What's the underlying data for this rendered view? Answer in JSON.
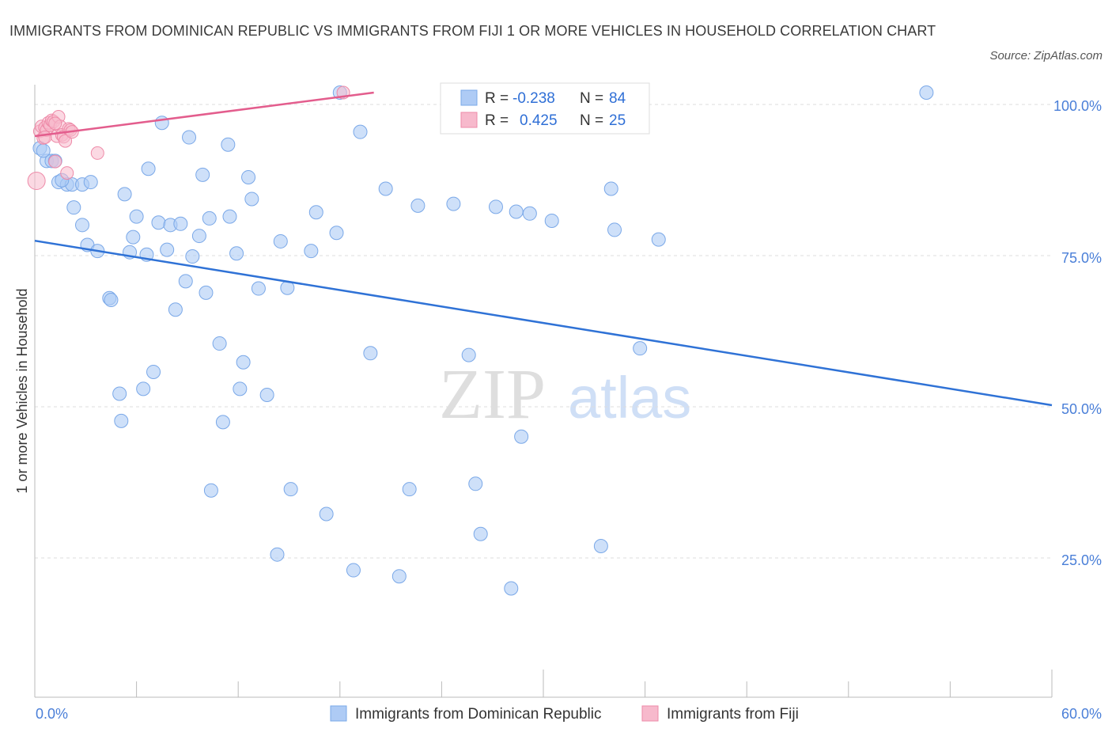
{
  "title": "IMMIGRANTS FROM DOMINICAN REPUBLIC VS IMMIGRANTS FROM FIJI 1 OR MORE VEHICLES IN HOUSEHOLD CORRELATION CHART",
  "source": "Source: ZipAtlas.com",
  "watermark": {
    "zip": "ZIP",
    "atlas": "atlas"
  },
  "legend": {
    "r_label": "R =",
    "n_label": "N =",
    "rows": [
      {
        "r": "-0.238",
        "n": "84"
      },
      {
        "r": "0.425",
        "n": "25"
      }
    ]
  },
  "colors": {
    "blue_fill": "#aecbf5",
    "blue_stroke": "#7aa8e8",
    "blue_line": "#2f72d6",
    "pink_fill": "#f7b9cc",
    "pink_stroke": "#ee8aa8",
    "pink_line": "#e35d8d",
    "tick_color": "#4a7fd8"
  },
  "chart_data": {
    "type": "scatter",
    "title": "IMMIGRANTS FROM DOMINICAN REPUBLIC VS IMMIGRANTS FROM FIJI 1 OR MORE VEHICLES IN HOUSEHOLD CORRELATION CHART",
    "xlabel": "",
    "ylabel": "1 or more Vehicles in Household",
    "xlim": [
      0,
      60
    ],
    "ylim": [
      0,
      100
    ],
    "x_tick_labels": [
      "0.0%",
      "60.0%"
    ],
    "y_tick_labels": [
      "100.0%",
      "75.0%",
      "50.0%",
      "25.0%"
    ],
    "y_ticks": [
      100,
      75,
      50,
      25
    ],
    "legend_position": "bottom",
    "series": [
      {
        "name": "Immigrants from Dominican Republic",
        "color": "#aecbf5",
        "trend": {
          "x": [
            0,
            60
          ],
          "y": [
            75.5,
            48.3
          ]
        },
        "points": [
          [
            0.3,
            90.8
          ],
          [
            0.7,
            88.7
          ],
          [
            1.0,
            88.7
          ],
          [
            1.4,
            85.2
          ],
          [
            1.9,
            84.8
          ],
          [
            2.2,
            84.8
          ],
          [
            2.8,
            84.8
          ],
          [
            3.3,
            85.2
          ],
          [
            1.2,
            88.7
          ],
          [
            1.6,
            85.5
          ],
          [
            2.3,
            81.0
          ],
          [
            2.8,
            78.1
          ],
          [
            3.1,
            74.8
          ],
          [
            3.7,
            73.8
          ],
          [
            4.4,
            66.0
          ],
          [
            4.5,
            65.7
          ],
          [
            5.0,
            50.2
          ],
          [
            5.1,
            45.7
          ],
          [
            5.3,
            83.2
          ],
          [
            5.6,
            73.6
          ],
          [
            5.8,
            76.1
          ],
          [
            6.0,
            79.5
          ],
          [
            6.4,
            51.0
          ],
          [
            6.6,
            73.2
          ],
          [
            6.7,
            87.4
          ],
          [
            7.0,
            53.8
          ],
          [
            7.3,
            78.5
          ],
          [
            7.5,
            95.0
          ],
          [
            7.8,
            74.0
          ],
          [
            8.0,
            78.1
          ],
          [
            8.3,
            64.1
          ],
          [
            8.6,
            78.3
          ],
          [
            8.9,
            68.8
          ],
          [
            9.1,
            92.6
          ],
          [
            9.3,
            72.9
          ],
          [
            9.7,
            76.3
          ],
          [
            9.9,
            86.4
          ],
          [
            10.1,
            66.9
          ],
          [
            10.3,
            79.2
          ],
          [
            10.4,
            34.2
          ],
          [
            10.9,
            58.5
          ],
          [
            11.1,
            45.5
          ],
          [
            11.4,
            91.4
          ],
          [
            11.5,
            79.5
          ],
          [
            11.9,
            73.4
          ],
          [
            12.1,
            51.0
          ],
          [
            12.3,
            55.4
          ],
          [
            12.6,
            86.0
          ],
          [
            12.8,
            82.4
          ],
          [
            13.2,
            67.6
          ],
          [
            13.7,
            50.0
          ],
          [
            14.3,
            23.6
          ],
          [
            14.5,
            75.4
          ],
          [
            14.9,
            67.7
          ],
          [
            15.1,
            34.4
          ],
          [
            16.3,
            73.8
          ],
          [
            16.6,
            80.2
          ],
          [
            17.2,
            30.3
          ],
          [
            17.8,
            76.8
          ],
          [
            18.0,
            100.0
          ],
          [
            18.8,
            21.0
          ],
          [
            19.2,
            93.5
          ],
          [
            19.8,
            56.9
          ],
          [
            20.7,
            84.1
          ],
          [
            21.5,
            20.0
          ],
          [
            22.1,
            34.4
          ],
          [
            22.6,
            81.3
          ],
          [
            24.7,
            81.6
          ],
          [
            25.6,
            56.6
          ],
          [
            26.0,
            35.3
          ],
          [
            26.3,
            27.0
          ],
          [
            27.2,
            81.1
          ],
          [
            28.1,
            18.0
          ],
          [
            28.4,
            80.3
          ],
          [
            28.7,
            43.1
          ],
          [
            29.2,
            80.0
          ],
          [
            30.5,
            78.8
          ],
          [
            33.4,
            25.0
          ],
          [
            34.0,
            84.1
          ],
          [
            34.2,
            77.3
          ],
          [
            35.7,
            57.7
          ],
          [
            36.8,
            75.7
          ],
          [
            52.6,
            100.0
          ],
          [
            0.5,
            90.4
          ]
        ]
      },
      {
        "name": "Immigrants from Fiji",
        "color": "#f7b9cc",
        "trend": {
          "x": [
            0,
            20
          ],
          "y": [
            92.8,
            100.0
          ]
        },
        "points": [
          [
            0.1,
            85.4
          ],
          [
            0.3,
            93.6
          ],
          [
            0.4,
            94.4
          ],
          [
            0.5,
            92.5
          ],
          [
            0.6,
            94.2
          ],
          [
            0.7,
            93.8
          ],
          [
            0.8,
            95.0
          ],
          [
            0.9,
            94.6
          ],
          [
            1.0,
            95.4
          ],
          [
            1.1,
            95.2
          ],
          [
            1.2,
            88.6
          ],
          [
            1.3,
            92.8
          ],
          [
            1.4,
            96.0
          ],
          [
            1.5,
            94.4
          ],
          [
            1.6,
            93.0
          ],
          [
            1.7,
            92.7
          ],
          [
            1.8,
            92.0
          ],
          [
            1.9,
            86.7
          ],
          [
            2.0,
            94.0
          ],
          [
            2.1,
            93.8
          ],
          [
            2.2,
            93.5
          ],
          [
            3.7,
            90.0
          ],
          [
            18.2,
            100.0
          ],
          [
            0.6,
            92.6
          ],
          [
            1.2,
            94.9
          ]
        ]
      }
    ]
  },
  "bottom_legend": [
    {
      "label": "Immigrants from Dominican Republic"
    },
    {
      "label": "Immigrants from Fiji"
    }
  ]
}
